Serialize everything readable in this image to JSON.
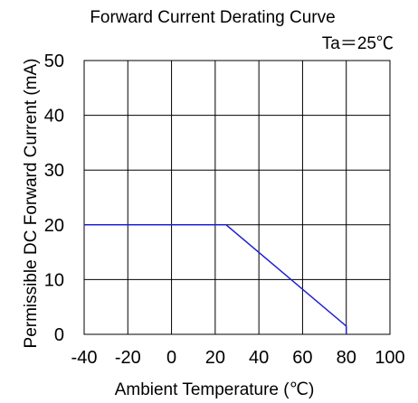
{
  "chart_data": {
    "type": "line",
    "title": "Forward Current Derating Curve",
    "condition": "Ta＝25℃",
    "xlabel": "Ambient Temperature (℃)",
    "ylabel": "Permissible DC Forward Current (mA)",
    "xlim": [
      -40,
      100
    ],
    "ylim": [
      0,
      50
    ],
    "xticks": [
      -40,
      -20,
      0,
      20,
      40,
      60,
      80,
      100
    ],
    "yticks": [
      0,
      10,
      20,
      30,
      40,
      50
    ],
    "grid": true,
    "series": [
      {
        "x": [
          -40,
          25,
          80,
          80
        ],
        "y": [
          20,
          20,
          1.5,
          0
        ],
        "color": "#1f1fd1"
      }
    ]
  }
}
